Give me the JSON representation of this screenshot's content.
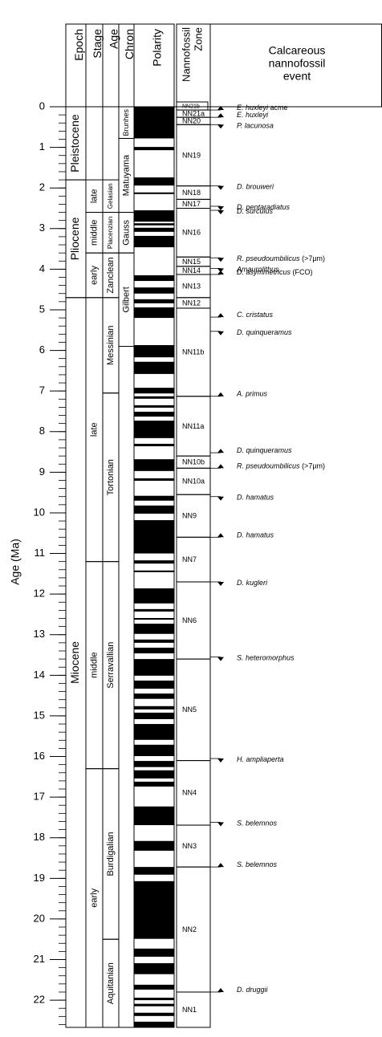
{
  "chart_data": {
    "type": "stratigraphic",
    "y_label": "Age (Ma)",
    "ylim": [
      0,
      22.67
    ],
    "yticks": [
      0,
      1,
      2,
      3,
      4,
      5,
      6,
      7,
      8,
      9,
      10,
      11,
      12,
      13,
      14,
      15,
      16,
      17,
      18,
      19,
      20,
      21,
      22
    ],
    "minor_tick_step": 0.2,
    "headers": {
      "epoch": "Epoch",
      "stage": "Stage",
      "age": "Age",
      "chron": "Chron",
      "polarity": "Polarity",
      "zone": [
        "Nannofossil",
        "Zone"
      ],
      "event": [
        "Calcareous",
        "nannofossil",
        "event"
      ]
    },
    "epochs": [
      {
        "name": "Pleistocene",
        "top": 0,
        "base": 1.8
      },
      {
        "name": "Pliocene",
        "top": 1.8,
        "base": 4.7
      },
      {
        "name": "Miocene",
        "top": 4.7,
        "base": 22.67
      }
    ],
    "stages": [
      {
        "name": "late",
        "top": 1.8,
        "base": 2.6
      },
      {
        "name": "middle",
        "top": 2.6,
        "base": 3.6
      },
      {
        "name": "early",
        "top": 3.6,
        "base": 4.7
      },
      {
        "name": "late",
        "top": 4.7,
        "base": 11.2
      },
      {
        "name": "middle",
        "top": 11.2,
        "base": 16.3
      },
      {
        "name": "early",
        "top": 16.3,
        "base": 22.67
      }
    ],
    "ages": [
      {
        "name": "Gelasian",
        "top": 1.8,
        "base": 2.6
      },
      {
        "name": "Piacenzian",
        "top": 2.6,
        "base": 3.6
      },
      {
        "name": "Zanclean",
        "top": 3.6,
        "base": 4.7
      },
      {
        "name": "Messinian",
        "top": 4.7,
        "base": 7.05
      },
      {
        "name": "Tortonian",
        "top": 7.05,
        "base": 11.2
      },
      {
        "name": "Serravallian",
        "top": 11.2,
        "base": 16.3
      },
      {
        "name": "Burdigalian",
        "top": 16.3,
        "base": 20.5
      },
      {
        "name": "Aquitanian",
        "top": 20.5,
        "base": 22.67
      }
    ],
    "chrons": [
      {
        "name": "Brunhes",
        "top": 0,
        "base": 0.78
      },
      {
        "name": "Matuyama",
        "top": 0.78,
        "base": 2.6
      },
      {
        "name": "Gauss",
        "top": 2.6,
        "base": 3.6
      },
      {
        "name": "Gilbert",
        "top": 3.6,
        "base": 5.9
      }
    ],
    "polarity_color": "#000000",
    "normal_polarity": [
      [
        0,
        0.78
      ],
      [
        0.99,
        1.07
      ],
      [
        1.74,
        1.94
      ],
      [
        2.11,
        2.15
      ],
      [
        2.55,
        2.83
      ],
      [
        2.87,
        2.92
      ],
      [
        2.98,
        3.08
      ],
      [
        3.18,
        3.46
      ],
      [
        4.15,
        4.29
      ],
      [
        4.45,
        4.6
      ],
      [
        4.74,
        4.84
      ],
      [
        4.94,
        5.2
      ],
      [
        5.87,
        6.17
      ],
      [
        6.28,
        6.58
      ],
      [
        6.92,
        7.06
      ],
      [
        7.13,
        7.19
      ],
      [
        7.35,
        7.41
      ],
      [
        7.51,
        7.63
      ],
      [
        7.73,
        8.16
      ],
      [
        8.3,
        8.36
      ],
      [
        8.68,
        8.97
      ],
      [
        9.15,
        9.21
      ],
      [
        9.58,
        9.7
      ],
      [
        9.82,
        10.02
      ],
      [
        10.18,
        11.0
      ],
      [
        11.17,
        11.25
      ],
      [
        11.42,
        11.46
      ],
      [
        11.86,
        12.23
      ],
      [
        12.37,
        12.43
      ],
      [
        12.59,
        12.63
      ],
      [
        12.73,
        12.98
      ],
      [
        13.12,
        13.2
      ],
      [
        13.32,
        13.46
      ],
      [
        13.6,
        14.01
      ],
      [
        14.13,
        14.33
      ],
      [
        14.45,
        14.58
      ],
      [
        14.76,
        14.84
      ],
      [
        14.92,
        15.08
      ],
      [
        15.2,
        15.59
      ],
      [
        15.71,
        15.99
      ],
      [
        16.11,
        16.26
      ],
      [
        16.34,
        16.54
      ],
      [
        16.62,
        16.74
      ],
      [
        17.23,
        17.69
      ],
      [
        18.08,
        18.32
      ],
      [
        18.72,
        18.91
      ],
      [
        19.07,
        20.49
      ],
      [
        20.73,
        20.93
      ],
      [
        21.09,
        21.36
      ],
      [
        21.62,
        21.74
      ],
      [
        21.94,
        22.0
      ],
      [
        22.09,
        22.15
      ],
      [
        22.31,
        22.39
      ],
      [
        22.53,
        22.67
      ]
    ],
    "zones": [
      {
        "name": "NN21b",
        "top": 0,
        "base": 0.08
      },
      {
        "name": "NN21a",
        "top": 0.08,
        "base": 0.26
      },
      {
        "name": "NN20",
        "top": 0.26,
        "base": 0.44
      },
      {
        "name": "NN19",
        "top": 0.44,
        "base": 1.95
      },
      {
        "name": "NN18",
        "top": 1.95,
        "base": 2.28
      },
      {
        "name": "NN17",
        "top": 2.28,
        "base": 2.5
      },
      {
        "name": "NN16",
        "top": 2.5,
        "base": 3.7
      },
      {
        "name": "NN15",
        "top": 3.7,
        "base": 3.93
      },
      {
        "name": "NN14",
        "top": 3.93,
        "base": 4.13
      },
      {
        "name": "NN13",
        "top": 4.13,
        "base": 4.7
      },
      {
        "name": "NN12",
        "top": 4.7,
        "base": 4.96
      },
      {
        "name": "NN11b",
        "top": 4.96,
        "base": 7.13
      },
      {
        "name": "NN11a",
        "top": 7.13,
        "base": 8.6
      },
      {
        "name": "NN10b",
        "top": 8.6,
        "base": 8.9
      },
      {
        "name": "NN10a",
        "top": 8.9,
        "base": 9.55
      },
      {
        "name": "NN9",
        "top": 9.55,
        "base": 10.6
      },
      {
        "name": "NN7",
        "top": 10.6,
        "base": 11.7
      },
      {
        "name": "NN6",
        "top": 11.7,
        "base": 13.6
      },
      {
        "name": "NN5",
        "top": 13.6,
        "base": 16.1
      },
      {
        "name": "NN4",
        "top": 16.1,
        "base": 17.69
      },
      {
        "name": "NN3",
        "top": 17.69,
        "base": 18.72
      },
      {
        "name": "NN2",
        "top": 18.72,
        "base": 21.8
      },
      {
        "name": "NN1",
        "top": 21.8,
        "base": 22.67
      }
    ],
    "events": [
      {
        "name": "E. huxleyi",
        "note": "acme",
        "age": 0.08,
        "marker": "up"
      },
      {
        "name": "E. huxleyi",
        "age": 0.26,
        "marker": "up"
      },
      {
        "name": "P. lacunosa",
        "age": 0.44,
        "marker": "down"
      },
      {
        "name": "D. brouweri",
        "age": 1.95,
        "marker": "down"
      },
      {
        "name": "D. pentaradiatus",
        "age": 2.45,
        "marker": "down"
      },
      {
        "name": "D. surculus",
        "age": 2.55,
        "marker": "down"
      },
      {
        "name": "R. pseudoumbilicus",
        "note": "(>7µm)",
        "age": 3.72,
        "marker": "down"
      },
      {
        "name": "Amaurolithus",
        "age": 3.98,
        "marker": "down"
      },
      {
        "name": "D. asymmetricus",
        "note": "(FCO)",
        "age": 4.13,
        "marker": "up"
      },
      {
        "name": "C. cristatus",
        "age": 5.18,
        "marker": "up"
      },
      {
        "name": "D. quinqueramus",
        "age": 5.53,
        "marker": "down"
      },
      {
        "name": "A. primus",
        "age": 7.13,
        "marker": "up"
      },
      {
        "name": "D. quinqueramus",
        "age": 8.52,
        "marker": "up"
      },
      {
        "name": "R. pseudoumbilicus",
        "note": "(>7µm)",
        "age": 8.9,
        "marker": "up"
      },
      {
        "name": "D. hamatus",
        "age": 9.6,
        "marker": "down"
      },
      {
        "name": "D. hamatus",
        "age": 10.6,
        "marker": "up"
      },
      {
        "name": "D. kugleri",
        "age": 11.7,
        "marker": "down"
      },
      {
        "name": "S. heteromorphus",
        "age": 13.55,
        "marker": "down"
      },
      {
        "name": "H. ampliaperta",
        "age": 16.05,
        "marker": "down"
      },
      {
        "name": "S. belemnos",
        "age": 17.62,
        "marker": "down"
      },
      {
        "name": "S. belemnos",
        "age": 18.72,
        "marker": "up"
      },
      {
        "name": "D. druggii",
        "age": 21.8,
        "marker": "up"
      }
    ]
  }
}
